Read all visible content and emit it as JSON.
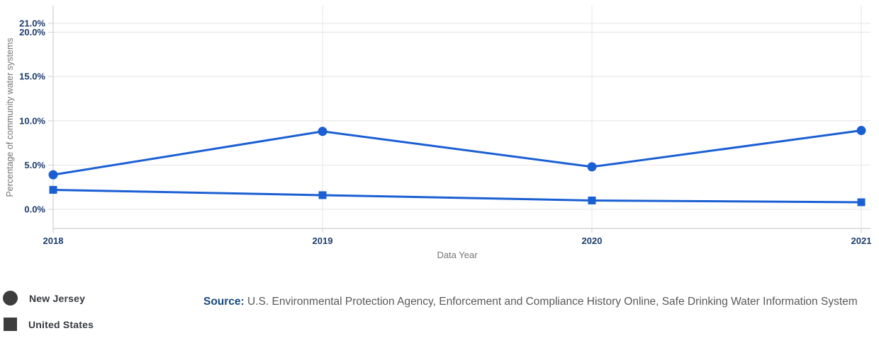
{
  "chart_data": {
    "type": "line",
    "x": [
      "2018",
      "2019",
      "2020",
      "2021"
    ],
    "xlabel": "Data Year",
    "ylabel": "Percentage of community water systems",
    "ylim": [
      0,
      21
    ],
    "grid": true,
    "legend_position": "bottom-left",
    "y_ticks": [
      {
        "value": 21,
        "label": "21.0%"
      },
      {
        "value": 20,
        "label": "20.0%"
      },
      {
        "value": 15,
        "label": "15.0%"
      },
      {
        "value": 10,
        "label": "10.0%"
      },
      {
        "value": 5,
        "label": "5.0%"
      },
      {
        "value": 0,
        "label": "0.0%"
      }
    ],
    "series": [
      {
        "name": "New Jersey",
        "marker": "circle",
        "values": [
          3.9,
          8.8,
          4.8,
          8.9
        ]
      },
      {
        "name": "United States",
        "marker": "square",
        "values": [
          2.2,
          1.6,
          1.0,
          0.8
        ]
      }
    ],
    "colors": {
      "line": "#1a5fd3",
      "grid": "#e4e4e4",
      "axis": "#cfcfcf",
      "tick_label": "#1c3c6e",
      "axis_title": "#757575"
    }
  },
  "legend": {
    "items": [
      {
        "label": "New Jersey",
        "marker": "circle"
      },
      {
        "label": "United States",
        "marker": "square"
      }
    ],
    "marker_color": "#3d3d3d",
    "label_color": "#35393e"
  },
  "source": {
    "label": "Source:",
    "text": "U.S. Environmental Protection Agency, Enforcement and Compliance History Online, Safe Drinking Water Information System",
    "label_color": "#174a7c"
  }
}
